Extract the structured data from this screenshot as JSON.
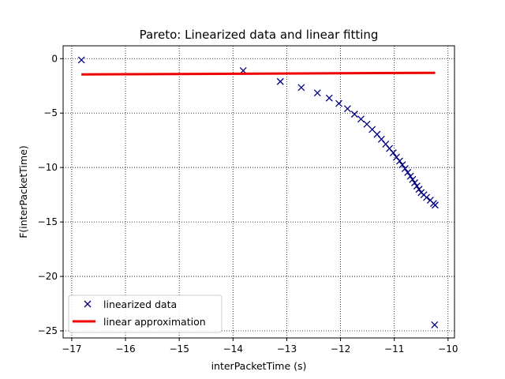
{
  "chart_data": {
    "type": "scatter",
    "title": "Pareto: Linearized data and linear fitting",
    "xlabel": "interPacketTime (s)",
    "ylabel": "F(interPacketTime)",
    "xlim": [
      -17.16,
      -9.88
    ],
    "ylim": [
      -25.65,
      1.18
    ],
    "x_ticks": [
      -17,
      -16,
      -15,
      -14,
      -13,
      -12,
      -11,
      -10
    ],
    "y_ticks": [
      0,
      -5,
      -10,
      -15,
      -20,
      -25
    ],
    "grid": true,
    "grid_style": "dotted",
    "legend_position": "bottom-left",
    "series": [
      {
        "name": "linearized data",
        "kind": "scatter",
        "marker": "x",
        "color": "#00007f",
        "points": [
          [
            -16.82,
            -0.12
          ],
          [
            -13.81,
            -1.1
          ],
          [
            -13.12,
            -2.1
          ],
          [
            -12.73,
            -2.65
          ],
          [
            -12.43,
            -3.15
          ],
          [
            -12.21,
            -3.62
          ],
          [
            -12.03,
            -4.12
          ],
          [
            -11.87,
            -4.6
          ],
          [
            -11.74,
            -5.1
          ],
          [
            -11.62,
            -5.55
          ],
          [
            -11.51,
            -6.02
          ],
          [
            -11.41,
            -6.5
          ],
          [
            -11.32,
            -6.95
          ],
          [
            -11.24,
            -7.4
          ],
          [
            -11.16,
            -7.85
          ],
          [
            -11.09,
            -8.25
          ],
          [
            -11.02,
            -8.65
          ],
          [
            -10.96,
            -9.05
          ],
          [
            -10.9,
            -9.4
          ],
          [
            -10.85,
            -9.75
          ],
          [
            -10.8,
            -10.1
          ],
          [
            -10.75,
            -10.45
          ],
          [
            -10.7,
            -10.8
          ],
          [
            -10.66,
            -11.1
          ],
          [
            -10.62,
            -11.4
          ],
          [
            -10.58,
            -11.7
          ],
          [
            -10.54,
            -12.0
          ],
          [
            -10.5,
            -12.3
          ],
          [
            -10.45,
            -12.5
          ],
          [
            -10.4,
            -12.75
          ],
          [
            -10.33,
            -13.0
          ],
          [
            -10.27,
            -13.3
          ],
          [
            -10.24,
            -13.45
          ],
          [
            -10.25,
            -24.45
          ]
        ]
      },
      {
        "name": "linear approximation",
        "kind": "line",
        "color": "#ee0000",
        "x": [
          -16.82,
          -10.24
        ],
        "y": [
          -1.45,
          -1.3
        ]
      }
    ]
  }
}
